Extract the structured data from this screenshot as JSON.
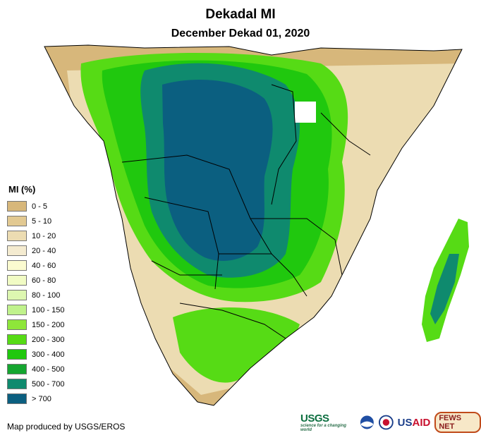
{
  "header": {
    "title": "Dekadal MI",
    "subtitle": "December Dekad 01, 2020"
  },
  "legend": {
    "title": "MI (%)",
    "items": [
      {
        "label": "0 - 5",
        "color": "#d7b77b"
      },
      {
        "label": "5 - 10",
        "color": "#e2c992"
      },
      {
        "label": "10 - 20",
        "color": "#ecdcb2"
      },
      {
        "label": "20 - 40",
        "color": "#f4ebd0"
      },
      {
        "label": "40 - 60",
        "color": "#fbfbd0"
      },
      {
        "label": "60 - 80",
        "color": "#f1fbc4"
      },
      {
        "label": "80 - 100",
        "color": "#ddf7b0"
      },
      {
        "label": "100 - 150",
        "color": "#c0f28c"
      },
      {
        "label": "150 - 200",
        "color": "#8ee63a"
      },
      {
        "label": "200 - 300",
        "color": "#56db15"
      },
      {
        "label": "300 - 400",
        "color": "#20c80e"
      },
      {
        "label": "400 - 500",
        "color": "#15a630"
      },
      {
        "label": "500 - 700",
        "color": "#0f8a6e"
      },
      {
        "label": "> 700",
        "color": "#0b5f80"
      }
    ]
  },
  "footer": {
    "credit": "Map produced by USGS/EROS",
    "logos": {
      "usgs": "USGS",
      "usgs_tagline": "science for a changing world",
      "usaid_prefix": "US",
      "usaid_suffix": "AID",
      "fews": "FEWS NET"
    }
  },
  "map": {
    "region": "Southern Africa",
    "land_color": "#d7b77b",
    "sea_color": "#ffffff",
    "border_color": "#000000"
  }
}
